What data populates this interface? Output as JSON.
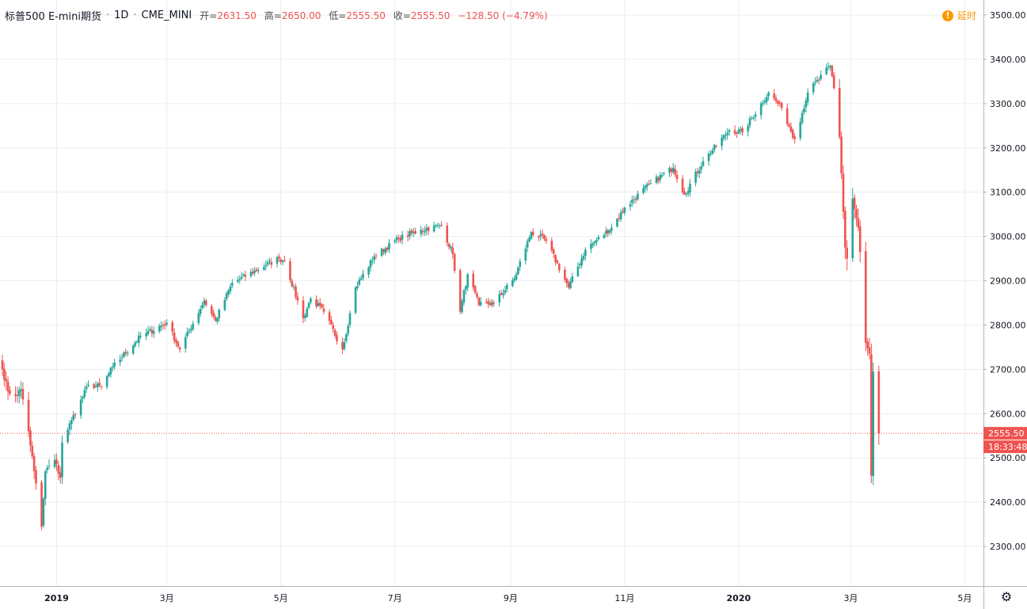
{
  "header": {
    "symbol": "标普500 E-mini期货",
    "interval": "1D",
    "exchange": "CME_MINI",
    "open_label": "开=",
    "open_value": "2631.50",
    "high_label": "高=",
    "high_value": "2650.00",
    "low_label": "低=",
    "low_value": "2555.50",
    "close_label": "收=",
    "close_value": "2555.50",
    "change": "−128.50 (−4.79%)"
  },
  "delay_badge": {
    "icon": "!",
    "label": "延时"
  },
  "price_tag": {
    "price": "2555.50",
    "countdown": "18:33:48"
  },
  "colors": {
    "up": "#26a69a",
    "down": "#ef5350",
    "grid": "#e9eef3",
    "axis": "#b2b5be",
    "badge": "#ff9800"
  },
  "chart_data": {
    "type": "candlestick",
    "ylim": [
      2215,
      3520
    ],
    "y_ticks": [
      "3500.00",
      "3400.00",
      "3300.00",
      "3200.00",
      "3100.00",
      "3000.00",
      "2900.00",
      "2800.00",
      "2700.00",
      "2600.00",
      "2500.00",
      "2400.00",
      "2300.00"
    ],
    "x_ticks": [
      "2019",
      "3月",
      "5月",
      "7月",
      "9月",
      "11月",
      "2020",
      "3月",
      "5月"
    ],
    "last_price": 2555.5,
    "series_anchors": [
      {
        "date": "2018-12-03",
        "price": 2700
      },
      {
        "date": "2018-12-06",
        "price": 2650
      },
      {
        "date": "2018-12-10",
        "price": 2640
      },
      {
        "date": "2018-12-13",
        "price": 2655
      },
      {
        "date": "2018-12-17",
        "price": 2560
      },
      {
        "date": "2018-12-20",
        "price": 2470
      },
      {
        "date": "2018-12-24",
        "price": 2345
      },
      {
        "date": "2018-12-26",
        "price": 2470
      },
      {
        "date": "2018-12-31",
        "price": 2495
      },
      {
        "date": "2019-01-03",
        "price": 2455
      },
      {
        "date": "2019-01-04",
        "price": 2535
      },
      {
        "date": "2019-01-09",
        "price": 2585
      },
      {
        "date": "2019-01-18",
        "price": 2665
      },
      {
        "date": "2019-01-25",
        "price": 2660
      },
      {
        "date": "2019-01-31",
        "price": 2705
      },
      {
        "date": "2019-02-15",
        "price": 2775
      },
      {
        "date": "2019-03-01",
        "price": 2805
      },
      {
        "date": "2019-03-08",
        "price": 2745
      },
      {
        "date": "2019-03-21",
        "price": 2855
      },
      {
        "date": "2019-03-27",
        "price": 2810
      },
      {
        "date": "2019-04-05",
        "price": 2895
      },
      {
        "date": "2019-04-23",
        "price": 2935
      },
      {
        "date": "2019-04-30",
        "price": 2950
      },
      {
        "date": "2019-05-03",
        "price": 2945
      },
      {
        "date": "2019-05-13",
        "price": 2815
      },
      {
        "date": "2019-05-17",
        "price": 2860
      },
      {
        "date": "2019-05-24",
        "price": 2830
      },
      {
        "date": "2019-06-03",
        "price": 2745
      },
      {
        "date": "2019-06-10",
        "price": 2885
      },
      {
        "date": "2019-06-20",
        "price": 2955
      },
      {
        "date": "2019-07-03",
        "price": 2995
      },
      {
        "date": "2019-07-15",
        "price": 3015
      },
      {
        "date": "2019-07-26",
        "price": 3025
      },
      {
        "date": "2019-08-01",
        "price": 2960
      },
      {
        "date": "2019-08-05",
        "price": 2830
      },
      {
        "date": "2019-08-09",
        "price": 2915
      },
      {
        "date": "2019-08-15",
        "price": 2845
      },
      {
        "date": "2019-08-23",
        "price": 2850
      },
      {
        "date": "2019-09-03",
        "price": 2905
      },
      {
        "date": "2019-09-12",
        "price": 3010
      },
      {
        "date": "2019-09-20",
        "price": 2990
      },
      {
        "date": "2019-10-02",
        "price": 2885
      },
      {
        "date": "2019-10-11",
        "price": 2970
      },
      {
        "date": "2019-10-25",
        "price": 3020
      },
      {
        "date": "2019-11-01",
        "price": 3065
      },
      {
        "date": "2019-11-15",
        "price": 3120
      },
      {
        "date": "2019-11-27",
        "price": 3155
      },
      {
        "date": "2019-12-03",
        "price": 3095
      },
      {
        "date": "2019-12-13",
        "price": 3170
      },
      {
        "date": "2019-12-27",
        "price": 3240
      },
      {
        "date": "2020-01-03",
        "price": 3235
      },
      {
        "date": "2020-01-17",
        "price": 3325
      },
      {
        "date": "2020-01-24",
        "price": 3290
      },
      {
        "date": "2020-01-31",
        "price": 3220
      },
      {
        "date": "2020-02-07",
        "price": 3325
      },
      {
        "date": "2020-02-19",
        "price": 3385
      },
      {
        "date": "2020-02-21",
        "price": 3335
      },
      {
        "date": "2020-02-24",
        "price": 3225
      },
      {
        "date": "2020-02-27",
        "price": 2975
      },
      {
        "date": "2020-02-28",
        "price": 2950
      },
      {
        "date": "2020-03-02",
        "price": 3085
      },
      {
        "date": "2020-03-05",
        "price": 3020
      },
      {
        "date": "2020-03-06",
        "price": 2965
      },
      {
        "date": "2020-03-09",
        "price": 2760
      },
      {
        "date": "2020-03-11",
        "price": 2735
      },
      {
        "date": "2020-03-12",
        "price": 2460
      },
      {
        "date": "2020-03-13",
        "price": 2695
      },
      {
        "date": "2020-03-16",
        "price": 2555.5
      }
    ]
  }
}
